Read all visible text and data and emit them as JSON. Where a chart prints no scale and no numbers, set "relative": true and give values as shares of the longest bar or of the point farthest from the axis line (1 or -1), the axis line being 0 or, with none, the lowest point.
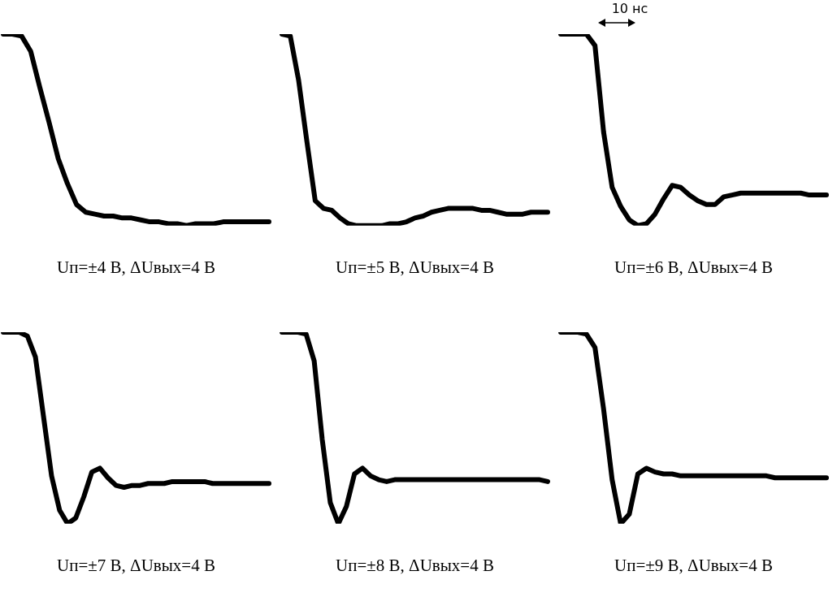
{
  "chart_data": [
    {
      "type": "line",
      "relative": true,
      "title": "Uп=±4 В, ΔUвых=4 В",
      "color": "#000000",
      "categories": [
        null,
        null,
        null,
        null,
        null,
        null,
        null,
        null,
        null,
        null,
        null,
        null,
        null,
        null,
        null,
        null,
        null,
        null,
        null,
        null,
        null,
        null,
        null,
        null,
        null,
        null,
        null,
        null,
        null,
        null
      ],
      "values": [
        1,
        1,
        0.99,
        0.91,
        0.72,
        0.54,
        0.35,
        0.22,
        0.11,
        0.07,
        0.06,
        0.05,
        0.05,
        0.04,
        0.04,
        0.03,
        0.02,
        0.02,
        0.01,
        0.01,
        0,
        0.01,
        0.01,
        0.01,
        0.02,
        0.02,
        0.02,
        0.02,
        0.02,
        0.02
      ]
    },
    {
      "type": "line",
      "relative": true,
      "title": "Uп=±5 В, ΔUвых=4 В",
      "color": "#000000",
      "categories": [
        null,
        null,
        null,
        null,
        null,
        null,
        null,
        null,
        null,
        null,
        null,
        null,
        null,
        null,
        null,
        null,
        null,
        null,
        null,
        null,
        null,
        null,
        null,
        null,
        null,
        null,
        null,
        null,
        null,
        null,
        null,
        null,
        null
      ],
      "values": [
        1,
        0.99,
        0.76,
        0.44,
        0.13,
        0.09,
        0.08,
        0.04,
        0.01,
        0,
        0,
        0,
        0,
        0.01,
        0.01,
        0.02,
        0.04,
        0.05,
        0.07,
        0.08,
        0.09,
        0.09,
        0.09,
        0.09,
        0.08,
        0.08,
        0.07,
        0.06,
        0.06,
        0.06,
        0.07,
        0.07,
        0.07
      ]
    },
    {
      "type": "line",
      "relative": true,
      "title": "Uп=±6 В, ΔUвых=4 В",
      "color": "#000000",
      "annotations": [
        "10 нс"
      ],
      "categories": [
        null,
        null,
        null,
        null,
        null,
        null,
        null,
        null,
        null,
        null,
        null,
        null,
        null,
        null,
        null,
        null,
        null,
        null,
        null,
        null,
        null,
        null,
        null,
        null,
        null,
        null,
        null,
        null,
        null,
        null,
        null,
        null
      ],
      "values": [
        1,
        1,
        1,
        1,
        0.94,
        0.49,
        0.2,
        0.1,
        0.03,
        0,
        0.01,
        0.06,
        0.14,
        0.21,
        0.2,
        0.16,
        0.13,
        0.11,
        0.11,
        0.15,
        0.16,
        0.17,
        0.17,
        0.17,
        0.17,
        0.17,
        0.17,
        0.17,
        0.17,
        0.16,
        0.16,
        0.16
      ]
    },
    {
      "type": "line",
      "relative": true,
      "title": "Uп=±7 В, ΔUвых=4 В",
      "color": "#000000",
      "categories": [
        null,
        null,
        null,
        null,
        null,
        null,
        null,
        null,
        null,
        null,
        null,
        null,
        null,
        null,
        null,
        null,
        null,
        null,
        null,
        null,
        null,
        null,
        null,
        null,
        null,
        null,
        null,
        null,
        null,
        null,
        null,
        null,
        null,
        null
      ],
      "values": [
        1,
        1,
        1,
        0.98,
        0.87,
        0.56,
        0.25,
        0.07,
        0,
        0.03,
        0.14,
        0.27,
        0.29,
        0.24,
        0.2,
        0.19,
        0.2,
        0.2,
        0.21,
        0.21,
        0.21,
        0.22,
        0.22,
        0.22,
        0.22,
        0.22,
        0.21,
        0.21,
        0.21,
        0.21,
        0.21,
        0.21,
        0.21,
        0.21
      ]
    },
    {
      "type": "line",
      "relative": true,
      "title": "Uп=±8 В, ΔUвых=4 В",
      "color": "#000000",
      "categories": [
        null,
        null,
        null,
        null,
        null,
        null,
        null,
        null,
        null,
        null,
        null,
        null,
        null,
        null,
        null,
        null,
        null,
        null,
        null,
        null,
        null,
        null,
        null,
        null,
        null,
        null,
        null,
        null,
        null,
        null,
        null,
        null,
        null,
        null
      ],
      "values": [
        1,
        1,
        1,
        0.99,
        0.85,
        0.44,
        0.11,
        0,
        0.09,
        0.26,
        0.29,
        0.25,
        0.23,
        0.22,
        0.23,
        0.23,
        0.23,
        0.23,
        0.23,
        0.23,
        0.23,
        0.23,
        0.23,
        0.23,
        0.23,
        0.23,
        0.23,
        0.23,
        0.23,
        0.23,
        0.23,
        0.23,
        0.23,
        0.22
      ]
    },
    {
      "type": "line",
      "relative": true,
      "title": "Uп=±9 В, ΔUвых=4 В",
      "color": "#000000",
      "categories": [
        null,
        null,
        null,
        null,
        null,
        null,
        null,
        null,
        null,
        null,
        null,
        null,
        null,
        null,
        null,
        null,
        null,
        null,
        null,
        null,
        null,
        null,
        null,
        null,
        null,
        null,
        null,
        null,
        null,
        null,
        null,
        null
      ],
      "values": [
        1,
        1,
        1,
        0.99,
        0.92,
        0.6,
        0.23,
        0,
        0.05,
        0.26,
        0.29,
        0.27,
        0.26,
        0.26,
        0.25,
        0.25,
        0.25,
        0.25,
        0.25,
        0.25,
        0.25,
        0.25,
        0.25,
        0.25,
        0.25,
        0.24,
        0.24,
        0.24,
        0.24,
        0.24,
        0.24,
        0.24
      ]
    }
  ]
}
